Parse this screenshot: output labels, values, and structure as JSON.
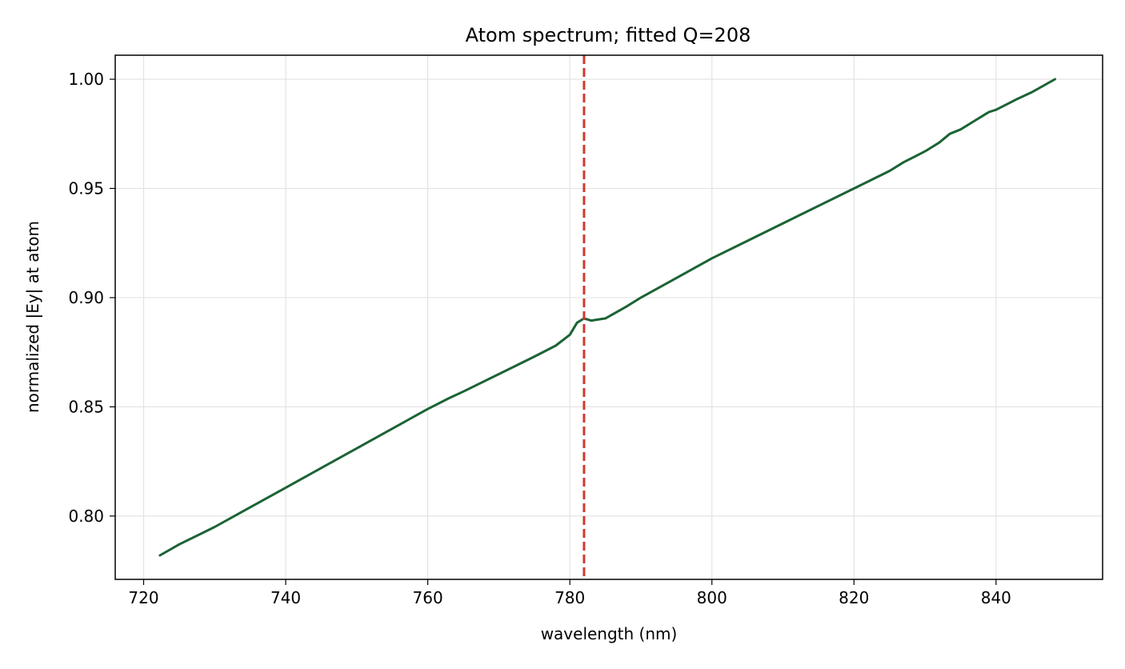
{
  "chart_data": {
    "type": "line",
    "title": "Atom spectrum; fitted Q=208",
    "xlabel": "wavelength (nm)",
    "ylabel": "normalized |Ey| at atom",
    "xlim": [
      716,
      855
    ],
    "ylim": [
      0.771,
      1.011
    ],
    "xticks": [
      720,
      740,
      760,
      780,
      800,
      820,
      840
    ],
    "xtick_labels": [
      "720",
      "740",
      "760",
      "780",
      "800",
      "820",
      "840"
    ],
    "yticks": [
      0.8,
      0.85,
      0.9,
      0.95,
      1.0
    ],
    "ytick_labels": [
      "0.80",
      "0.85",
      "0.90",
      "0.95",
      "1.00"
    ],
    "grid": true,
    "series": [
      {
        "color": "#1b6334",
        "x": [
          722.3,
          725,
          730,
          735,
          740,
          745,
          750,
          755,
          760,
          763,
          765,
          770,
          775,
          778,
          780,
          781,
          782,
          783,
          785,
          788,
          790,
          795,
          800,
          805,
          810,
          815,
          820,
          825,
          827,
          830,
          832,
          833.5,
          835,
          837,
          838.5,
          839,
          840,
          843,
          845,
          848.3
        ],
        "y": [
          0.782,
          0.787,
          0.795,
          0.804,
          0.813,
          0.822,
          0.831,
          0.84,
          0.849,
          0.854,
          0.857,
          0.865,
          0.873,
          0.878,
          0.883,
          0.8885,
          0.8905,
          0.8895,
          0.8905,
          0.896,
          0.9,
          0.909,
          0.918,
          0.926,
          0.934,
          0.942,
          0.95,
          0.958,
          0.962,
          0.967,
          0.971,
          0.975,
          0.977,
          0.981,
          0.984,
          0.985,
          0.986,
          0.991,
          0.994,
          1.0
        ]
      }
    ],
    "vlines": [
      {
        "x": 782,
        "color": "#d03a2f",
        "style": "dashed"
      }
    ]
  }
}
